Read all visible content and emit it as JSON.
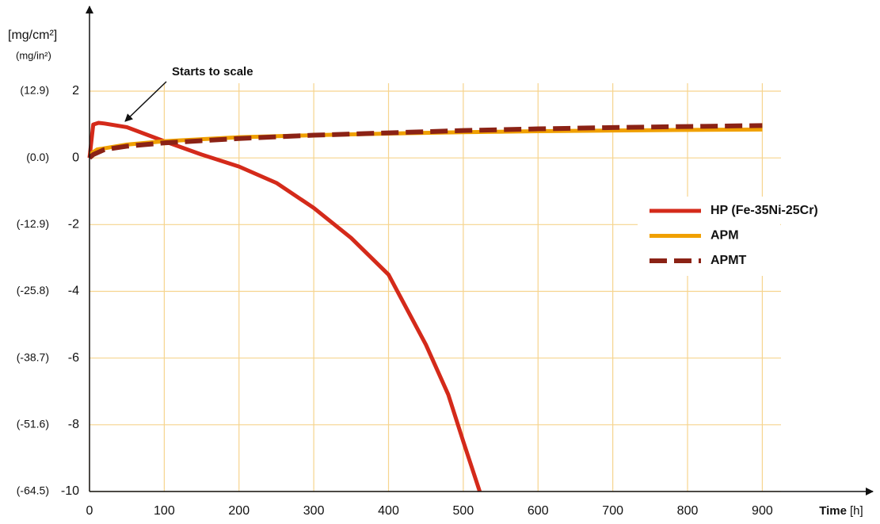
{
  "chart_data": {
    "type": "line",
    "y_label": "[mg/cm²]",
    "y2_label": "(mg/in²)",
    "x_label": "Time",
    "x_unit": "[h]",
    "annotation": "Starts to scale",
    "xlim": [
      0,
      925
    ],
    "xticks": [
      0,
      100,
      200,
      300,
      400,
      500,
      600,
      700,
      800,
      900
    ],
    "ylim": [
      -10,
      2
    ],
    "yticks": [
      2,
      0,
      -2,
      -4,
      -6,
      -8,
      -10
    ],
    "y2lim": [
      -64.5,
      12.9
    ],
    "y2ticks": [
      {
        "value": 12.9,
        "label": "(12.9)"
      },
      {
        "value": 0,
        "label": "(0.0)"
      },
      {
        "value": -12.9,
        "label": "(-12.9)"
      },
      {
        "value": -25.8,
        "label": "(-25.8)"
      },
      {
        "value": -38.7,
        "label": "(-38.7)"
      },
      {
        "value": -51.6,
        "label": "(-51.6)"
      },
      {
        "value": -64.5,
        "label": "(-64.5)"
      }
    ],
    "grid": true,
    "grid_color": "#f6d48e",
    "series": [
      {
        "name": "HP (Fe-35Ni-25Cr)",
        "color": "#d42a1a",
        "linestyle": "solid",
        "x": [
          0,
          5,
          12,
          20,
          50,
          100,
          150,
          200,
          250,
          300,
          350,
          400,
          450,
          480,
          500,
          522
        ],
        "values": [
          0,
          1.0,
          1.05,
          1.03,
          0.92,
          0.5,
          0.1,
          -0.26,
          -0.75,
          -1.5,
          -2.4,
          -3.5,
          -5.6,
          -7.1,
          -8.5,
          -10
        ]
      },
      {
        "name": "APM",
        "color": "#f0a000",
        "linestyle": "solid",
        "x": [
          0,
          10,
          50,
          100,
          200,
          300,
          400,
          500,
          600,
          700,
          800,
          900
        ],
        "values": [
          0.1,
          0.25,
          0.4,
          0.5,
          0.62,
          0.68,
          0.73,
          0.77,
          0.8,
          0.82,
          0.84,
          0.85
        ]
      },
      {
        "name": "APMT",
        "color": "#8b2215",
        "linestyle": "dashed",
        "x": [
          0,
          5,
          20,
          50,
          100,
          200,
          300,
          400,
          500,
          600,
          700,
          800,
          900
        ],
        "values": [
          0,
          0.1,
          0.25,
          0.35,
          0.45,
          0.58,
          0.68,
          0.75,
          0.82,
          0.87,
          0.91,
          0.94,
          0.97
        ]
      }
    ]
  }
}
